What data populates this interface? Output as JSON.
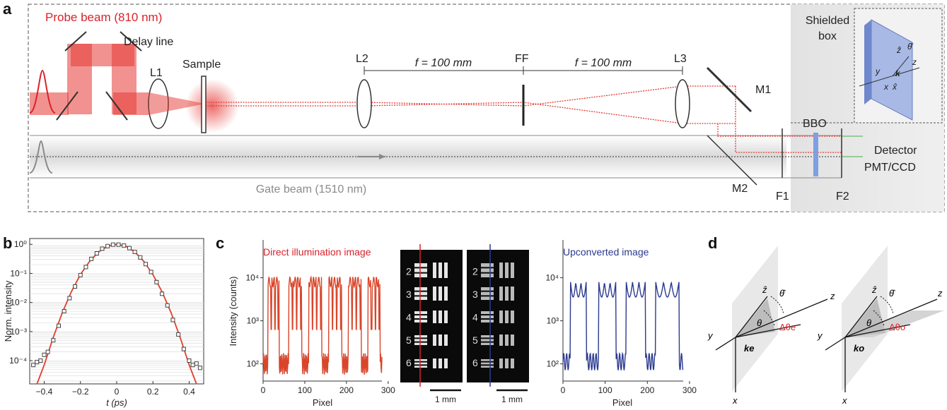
{
  "panel_a": {
    "letter": "a",
    "probe_beam": "Probe beam (810 nm)",
    "delay_line": "Delay line",
    "L1": "L1",
    "sample": "Sample",
    "L2": "L2",
    "f1": "f = 100 mm",
    "FF": "FF",
    "f2": "f = 100 mm",
    "L3": "L3",
    "M1": "M1",
    "M2": "M2",
    "shielded": "Shielded",
    "box": "box",
    "BBO": "BBO",
    "detector": "Detector",
    "pmt_ccd": "PMT/CCD",
    "F1": "F1",
    "F2": "F2",
    "gate_beam": "Gate beam (1510 nm)",
    "inset_axes": [
      "y",
      "ẑ",
      "θ̂",
      "z",
      "k",
      "x",
      "x̂"
    ],
    "colors": {
      "probe": "#d8232a",
      "gate": "#8a8a8a",
      "bbo": "#7f9fe0"
    }
  },
  "panel_b": {
    "letter": "b",
    "ylabel": "Norm. intensity",
    "xlabel": "t (ps)",
    "chart_data": {
      "type": "scatter",
      "x_ticks": [
        "−0.4",
        "−0.2",
        "0",
        "0.2",
        "0.4"
      ],
      "y_ticks": [
        "10⁰",
        "10⁻¹",
        "10⁻²",
        "10⁻³",
        "10⁻⁴"
      ],
      "xlim": [
        -0.48,
        0.48
      ],
      "ylog_range": [
        -4.8,
        0.2
      ],
      "series": [
        {
          "kind": "fit",
          "color": "#e0402a",
          "x": [
            -0.44,
            -0.4,
            -0.35,
            -0.3,
            -0.25,
            -0.2,
            -0.15,
            -0.1,
            -0.05,
            0,
            0.05,
            0.1,
            0.15,
            0.2,
            0.25,
            0.3,
            0.35,
            0.4,
            0.44
          ],
          "log10y": [
            -5.0,
            -4.15,
            -3.2,
            -2.35,
            -1.63,
            -1.04,
            -0.59,
            -0.26,
            -0.06,
            0,
            -0.06,
            -0.26,
            -0.59,
            -1.04,
            -1.63,
            -2.35,
            -3.2,
            -4.15,
            -5.0
          ]
        },
        {
          "kind": "measured",
          "color": "#444",
          "x": [
            -0.46,
            -0.44,
            -0.42,
            -0.4,
            -0.38,
            -0.35,
            -0.32,
            -0.29,
            -0.26,
            -0.23,
            -0.2,
            -0.17,
            -0.14,
            -0.11,
            -0.08,
            -0.05,
            -0.02,
            0.01,
            0.04,
            0.07,
            0.1,
            0.13,
            0.16,
            0.19,
            0.22,
            0.25,
            0.28,
            0.31,
            0.34,
            0.37,
            0.4,
            0.42,
            0.44,
            0.46
          ],
          "log10y": [
            -4.15,
            -4.05,
            -4.0,
            -3.8,
            -3.7,
            -3.3,
            -2.8,
            -2.3,
            -1.85,
            -1.45,
            -1.06,
            -0.78,
            -0.5,
            -0.31,
            -0.15,
            -0.06,
            -0.01,
            -0.01,
            -0.04,
            -0.13,
            -0.26,
            -0.45,
            -0.68,
            -0.95,
            -1.3,
            -1.7,
            -2.1,
            -2.6,
            -3.1,
            -3.6,
            -4.0,
            -4.15,
            -4.1,
            -4.25
          ]
        }
      ]
    }
  },
  "panel_c": {
    "letter": "c",
    "ylabel": "Intensity (counts)",
    "left_title": "Direct illumination image",
    "right_title": "Upconverted image",
    "xlabel": "Pixel",
    "x_ticks": [
      "0",
      "100",
      "200",
      "300"
    ],
    "y_ticks": [
      "10⁴",
      "10³",
      "10²"
    ],
    "scale_bar": "1 mm",
    "group_numbers": [
      "2",
      "3",
      "4",
      "5",
      "6"
    ],
    "chart_data": {
      "type": "line",
      "xlim": [
        0,
        285
      ],
      "ylog_range": [
        1.6,
        4.55
      ],
      "series": [
        {
          "name": "Direct illumination image",
          "color": "#d8452a",
          "peaks": 13,
          "high": 3.9,
          "low": 2.0
        },
        {
          "name": "Upconverted image",
          "color": "#2b3a8f",
          "peaks": 5,
          "high": 3.9,
          "low": 2.05
        }
      ]
    }
  },
  "panel_d": {
    "letter": "d",
    "left": {
      "y": "y",
      "z_hat": "ẑ",
      "theta_hat": "θ̂",
      "z": "z",
      "theta": "θ",
      "dtheta": "Δθe",
      "k": "ke",
      "x": "x"
    },
    "right": {
      "y": "y",
      "z_hat": "ẑ",
      "theta_hat": "θ̂",
      "z": "z",
      "theta": "θ",
      "dtheta": "Δθo",
      "k": "ko",
      "x": "x"
    }
  }
}
